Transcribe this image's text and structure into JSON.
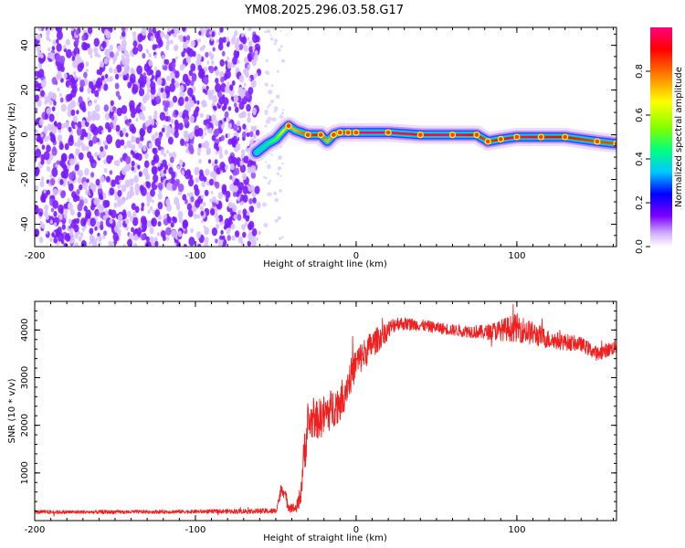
{
  "figure_title": "YM08.2025.296.03.58.G17",
  "chart_data": [
    {
      "type": "heatmap",
      "panel": "spectrogram",
      "xlabel": "Height of straight line (km)",
      "ylabel": "Frequency (Hz)",
      "xlim": [
        -200,
        162
      ],
      "ylim": [
        -50,
        48
      ],
      "xticks": [
        -200,
        -100,
        0,
        100
      ],
      "yticks": [
        -40,
        -20,
        0,
        20,
        40
      ],
      "colorbar": {
        "label": "Normalized spectral amplitude",
        "range": [
          0,
          1
        ],
        "ticks": [
          "0.0",
          "0.2",
          "0.4",
          "0.6",
          "0.8"
        ],
        "colormap": [
          "#ffffff",
          "#d0b0ff",
          "#7b00ff",
          "#0000ff",
          "#00c8ff",
          "#00ff80",
          "#80ff00",
          "#ffff00",
          "#ff8000",
          "#ff0000",
          "#ff0080"
        ]
      },
      "noise_region_x": [
        -200,
        -60
      ],
      "ridge": {
        "x": [
          -62,
          -55,
          -50,
          -45,
          -42,
          -38,
          -30,
          -22,
          -18,
          -14,
          -10,
          -5,
          0,
          20,
          40,
          60,
          75,
          82,
          90,
          100,
          115,
          130,
          150,
          162
        ],
        "y": [
          -8,
          -4,
          -2,
          2,
          4,
          2,
          0,
          0,
          -3,
          0,
          1,
          1,
          1,
          1,
          0,
          0,
          0,
          -3,
          -2,
          -1,
          -1,
          -1,
          -3,
          -4
        ],
        "amplitude": [
          0.4,
          0.45,
          0.55,
          0.7,
          0.8,
          0.75,
          0.85,
          0.9,
          0.75,
          0.8,
          0.9,
          0.95,
          1.0,
          1.0,
          0.95,
          1.0,
          0.9,
          0.85,
          0.9,
          1.0,
          0.95,
          0.9,
          0.85,
          0.85
        ]
      }
    },
    {
      "type": "line",
      "panel": "snr",
      "xlabel": "Height of straight line (km)",
      "ylabel": "SNR (10 * v/v)",
      "xlim": [
        -200,
        162
      ],
      "ylim": [
        0,
        4600
      ],
      "xticks": [
        -200,
        -100,
        0,
        100
      ],
      "yticks": [
        1000,
        2000,
        3000,
        4000
      ],
      "color": "#ee2020",
      "series": [
        {
          "name": "SNR",
          "envelope_x": [
            -200,
            -150,
            -100,
            -50,
            -46,
            -42,
            -38,
            -35,
            -32,
            -30,
            -28,
            -25,
            -20,
            -10,
            0,
            10,
            25,
            40,
            60,
            80,
            100,
            120,
            140,
            150,
            162
          ],
          "values": [
            180,
            180,
            190,
            200,
            700,
            300,
            250,
            400,
            1500,
            2000,
            2100,
            2100,
            2200,
            2500,
            3300,
            3700,
            4150,
            4100,
            4000,
            3950,
            4050,
            3800,
            3700,
            3500,
            3650
          ],
          "noise_amplitude": [
            40,
            40,
            40,
            60,
            150,
            120,
            100,
            200,
            500,
            450,
            400,
            400,
            450,
            400,
            350,
            300,
            150,
            120,
            120,
            150,
            300,
            200,
            150,
            150,
            150
          ]
        }
      ]
    }
  ]
}
